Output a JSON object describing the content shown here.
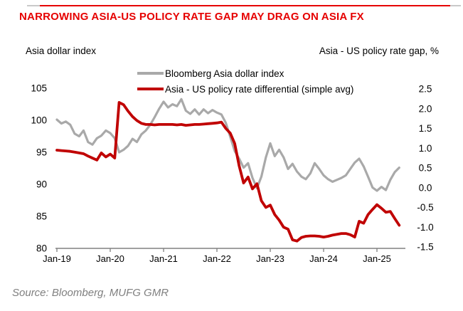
{
  "source": "Source: Bloomberg, MUFG GMR",
  "colors": {
    "accent_red": "#e60000",
    "line_red": "#c00000",
    "line_gray": "#a9a9a9",
    "axis_gray": "#808080",
    "source_gray": "#7f7f7f"
  },
  "chart_data": {
    "type": "line",
    "title": "NARROWING ASIA-US POLICY RATE GAP MAY DRAG ON ASIA FX",
    "frequency": "monthly",
    "x_start": "Jan-2019",
    "x_end": "Jun-2025",
    "x_tick_indices": [
      0,
      12,
      24,
      36,
      48,
      60,
      72
    ],
    "x_tick_labels": [
      "Jan-19",
      "Jan-20",
      "Jan-21",
      "Jan-22",
      "Jan-23",
      "Jan-24",
      "Jan-25"
    ],
    "grid": "off",
    "legend_position": "top",
    "left_axis": {
      "label": "Asia dollar index",
      "min": 80,
      "max": 105,
      "ticks": [
        105,
        100,
        95,
        90,
        85,
        80
      ]
    },
    "right_axis": {
      "label": "Asia - US policy rate gap, %",
      "min": -1.5,
      "max": 2.5,
      "ticks": [
        "2.5",
        "2.0",
        "1.5",
        "1.0",
        "0.5",
        "0.0",
        "-0.5",
        "-1.0",
        "-1.5"
      ]
    },
    "series": [
      {
        "id": "gray",
        "name": "Bloomberg Asia dollar index",
        "axis": "left",
        "color": "#a9a9a9",
        "values": [
          100.1,
          99.5,
          99.8,
          99.3,
          97.9,
          97.5,
          98.4,
          96.6,
          96.2,
          97.2,
          97.6,
          98.4,
          98.0,
          97.2,
          95.0,
          95.4,
          96.0,
          97.1,
          96.6,
          97.8,
          98.4,
          99.3,
          100.5,
          101.8,
          102.9,
          102.0,
          102.5,
          102.2,
          103.3,
          101.5,
          101.0,
          101.7,
          100.9,
          101.7,
          101.1,
          101.6,
          101.2,
          100.9,
          99.6,
          97.4,
          95.2,
          94.0,
          92.6,
          93.3,
          91.0,
          89.4,
          91.2,
          94.2,
          96.4,
          94.4,
          95.4,
          94.2,
          92.4,
          93.2,
          92.0,
          91.2,
          90.8,
          91.7,
          93.3,
          92.4,
          91.4,
          90.8,
          90.4,
          90.7,
          91.0,
          91.4,
          92.4,
          93.4,
          94.0,
          92.8,
          91.2,
          89.5,
          89.0,
          89.6,
          89.1,
          90.7,
          91.9,
          92.6
        ]
      },
      {
        "id": "red",
        "name": "Asia - US policy rate differential (simple avg)",
        "axis": "right",
        "color": "#c00000",
        "values": [
          0.95,
          0.94,
          0.93,
          0.92,
          0.9,
          0.88,
          0.86,
          0.8,
          0.75,
          0.7,
          0.88,
          0.78,
          0.85,
          0.75,
          2.16,
          2.1,
          1.94,
          1.8,
          1.7,
          1.63,
          1.6,
          1.6,
          1.59,
          1.6,
          1.6,
          1.6,
          1.6,
          1.59,
          1.6,
          1.58,
          1.59,
          1.6,
          1.6,
          1.61,
          1.62,
          1.63,
          1.64,
          1.66,
          1.5,
          1.38,
          1.12,
          0.55,
          0.12,
          0.27,
          -0.03,
          0.1,
          -0.33,
          -0.5,
          -0.44,
          -0.68,
          -0.82,
          -1.0,
          -1.05,
          -1.32,
          -1.35,
          -1.26,
          -1.23,
          -1.22,
          -1.22,
          -1.23,
          -1.25,
          -1.23,
          -1.2,
          -1.18,
          -1.16,
          -1.16,
          -1.19,
          -1.25,
          -0.85,
          -0.9,
          -0.68,
          -0.55,
          -0.43,
          -0.52,
          -0.62,
          -0.6,
          -0.78,
          -0.95
        ]
      }
    ]
  }
}
